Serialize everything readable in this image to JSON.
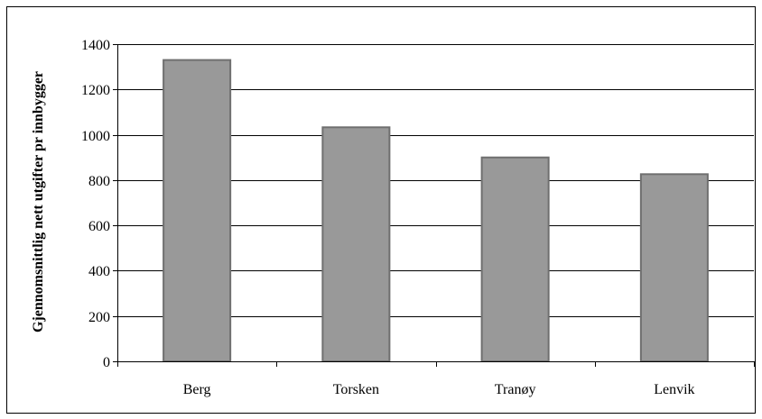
{
  "chart_data": {
    "type": "bar",
    "title": "",
    "xlabel": "",
    "ylabel": "Gjennomsnittlig nett utgifter pr innbygger",
    "categories": [
      "Berg",
      "Torsken",
      "Tranøy",
      "Lenvik"
    ],
    "values": [
      1330,
      1033,
      900,
      826
    ],
    "ylim": [
      0,
      1400
    ],
    "yticks": [
      0,
      200,
      400,
      600,
      800,
      1000,
      1200,
      1400
    ],
    "grid": true,
    "legend": "none",
    "colors": {
      "bar_fill": "#999999",
      "bar_stroke": "#6f6f6f",
      "grid": "#000000",
      "frame": "#000000"
    }
  }
}
